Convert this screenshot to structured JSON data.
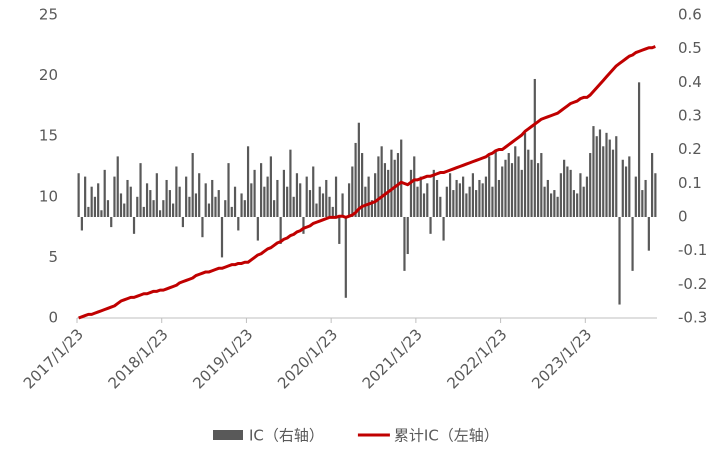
{
  "chart_data": {
    "type": "combo",
    "categories": [
      "2017/1/23",
      null,
      null,
      null,
      null,
      null,
      null,
      null,
      null,
      null,
      null,
      null,
      null,
      null,
      null,
      null,
      null,
      null,
      null,
      null,
      null,
      null,
      null,
      null,
      null,
      null,
      "2018/1/23",
      null,
      null,
      null,
      null,
      null,
      null,
      null,
      null,
      null,
      null,
      null,
      null,
      null,
      null,
      null,
      null,
      null,
      null,
      null,
      null,
      null,
      null,
      null,
      null,
      null,
      "2019/1/23",
      null,
      null,
      null,
      null,
      null,
      null,
      null,
      null,
      null,
      null,
      null,
      null,
      null,
      null,
      null,
      null,
      null,
      null,
      null,
      null,
      null,
      null,
      null,
      null,
      null,
      "2020/1/23",
      null,
      null,
      null,
      null,
      null,
      null,
      null,
      null,
      null,
      null,
      null,
      null,
      null,
      null,
      null,
      null,
      null,
      null,
      null,
      null,
      null,
      null,
      null,
      null,
      null,
      "2021/1/23",
      null,
      null,
      null,
      null,
      null,
      null,
      null,
      null,
      null,
      null,
      null,
      null,
      null,
      null,
      null,
      null,
      null,
      null,
      null,
      null,
      null,
      null,
      null,
      null,
      null,
      "2022/1/23",
      null,
      null,
      null,
      null,
      null,
      null,
      null,
      null,
      null,
      null,
      null,
      null,
      null,
      null,
      null,
      null,
      null,
      null,
      null,
      null,
      null,
      null,
      null,
      null,
      null,
      "2023/1/23",
      null,
      null,
      null,
      null,
      null,
      null,
      null,
      null,
      null,
      null,
      null,
      null,
      null,
      null,
      null,
      null,
      null,
      null,
      null,
      null,
      null
    ],
    "series": [
      {
        "name": "IC（右轴）",
        "type": "bar",
        "axis": "y2",
        "color": "#595959",
        "values": [
          0.13,
          -0.04,
          0.12,
          0.03,
          0.09,
          0.06,
          0.1,
          0.02,
          0.14,
          0.05,
          -0.03,
          0.12,
          0.18,
          0.07,
          0.04,
          0.11,
          0.09,
          -0.05,
          0.06,
          0.16,
          0.03,
          0.1,
          0.08,
          0.05,
          0.13,
          0.02,
          0.05,
          0.11,
          0.08,
          0.04,
          0.15,
          0.09,
          -0.03,
          0.12,
          0.06,
          0.19,
          0.07,
          0.13,
          -0.06,
          0.1,
          0.04,
          0.11,
          0.06,
          0.08,
          -0.12,
          0.05,
          0.16,
          0.03,
          0.09,
          -0.04,
          0.07,
          0.05,
          0.21,
          0.1,
          0.14,
          -0.07,
          0.16,
          0.09,
          0.12,
          0.18,
          0.05,
          0.11,
          -0.08,
          0.14,
          0.09,
          0.2,
          0.06,
          0.13,
          0.1,
          -0.05,
          0.12,
          0.08,
          0.15,
          0.04,
          0.09,
          0.07,
          0.11,
          0.06,
          0.03,
          0.12,
          -0.08,
          0.07,
          -0.24,
          0.1,
          0.15,
          0.22,
          0.28,
          0.19,
          0.09,
          0.12,
          0.05,
          0.13,
          0.18,
          0.21,
          0.16,
          0.14,
          0.2,
          0.17,
          0.19,
          0.23,
          -0.16,
          -0.11,
          0.14,
          0.18,
          0.09,
          0.12,
          0.07,
          0.1,
          -0.05,
          0.14,
          0.11,
          0.06,
          -0.07,
          0.09,
          0.13,
          0.08,
          0.11,
          0.1,
          0.12,
          0.07,
          0.09,
          0.13,
          0.08,
          0.11,
          0.1,
          0.12,
          0.18,
          0.09,
          0.2,
          0.11,
          0.15,
          0.17,
          0.19,
          0.16,
          0.21,
          0.18,
          0.14,
          0.25,
          0.2,
          0.17,
          0.41,
          0.16,
          0.19,
          0.09,
          0.11,
          0.07,
          0.08,
          0.06,
          0.13,
          0.17,
          0.15,
          0.14,
          0.08,
          0.07,
          0.13,
          0.09,
          0.12,
          0.19,
          0.27,
          0.24,
          0.26,
          0.21,
          0.25,
          0.23,
          0.2,
          0.24,
          -0.26,
          0.17,
          0.15,
          0.18,
          -0.16,
          0.12,
          0.4,
          0.08,
          0.11,
          -0.1,
          0.19,
          0.13
        ]
      },
      {
        "name": "累计IC（左轴）",
        "type": "line",
        "axis": "y",
        "color": "#c00000",
        "values": [
          0,
          0.1,
          0.2,
          0.3,
          0.3,
          0.4,
          0.5,
          0.6,
          0.7,
          0.8,
          0.9,
          1.0,
          1.2,
          1.4,
          1.5,
          1.6,
          1.7,
          1.7,
          1.8,
          1.9,
          2.0,
          2.0,
          2.1,
          2.2,
          2.2,
          2.3,
          2.3,
          2.4,
          2.5,
          2.6,
          2.7,
          2.9,
          3.0,
          3.1,
          3.2,
          3.3,
          3.5,
          3.6,
          3.7,
          3.8,
          3.8,
          3.9,
          4.0,
          4.1,
          4.1,
          4.2,
          4.3,
          4.4,
          4.4,
          4.5,
          4.5,
          4.6,
          4.6,
          4.8,
          5.0,
          5.2,
          5.3,
          5.5,
          5.7,
          5.8,
          6.0,
          6.2,
          6.3,
          6.5,
          6.6,
          6.8,
          6.9,
          7.1,
          7.2,
          7.4,
          7.5,
          7.6,
          7.8,
          7.9,
          8.0,
          8.1,
          8.2,
          8.3,
          8.3,
          8.3,
          8.4,
          8.4,
          8.3,
          8.4,
          8.5,
          8.7,
          9.0,
          9.2,
          9.3,
          9.4,
          9.5,
          9.6,
          9.8,
          10.0,
          10.2,
          10.4,
          10.6,
          10.8,
          11.0,
          11.2,
          11.1,
          11.0,
          11.2,
          11.4,
          11.4,
          11.5,
          11.6,
          11.7,
          11.7,
          11.8,
          11.9,
          12.0,
          12.0,
          12.1,
          12.2,
          12.3,
          12.4,
          12.5,
          12.6,
          12.7,
          12.8,
          12.9,
          13.0,
          13.1,
          13.2,
          13.3,
          13.5,
          13.6,
          13.8,
          13.9,
          13.9,
          14.1,
          14.3,
          14.5,
          14.7,
          14.9,
          15.1,
          15.4,
          15.6,
          15.8,
          16.0,
          16.2,
          16.4,
          16.5,
          16.6,
          16.7,
          16.8,
          16.9,
          17.1,
          17.3,
          17.5,
          17.7,
          17.8,
          17.9,
          18.1,
          18.2,
          18.2,
          18.4,
          18.7,
          19.0,
          19.3,
          19.6,
          19.9,
          20.2,
          20.5,
          20.8,
          21.0,
          21.2,
          21.4,
          21.6,
          21.7,
          21.9,
          22.0,
          22.1,
          22.2,
          22.3,
          22.3,
          22.4
        ]
      }
    ],
    "ylim": [
      0,
      25
    ],
    "yticks": [
      0,
      5,
      10,
      15,
      20,
      25
    ],
    "y2lim": [
      -0.3,
      0.6
    ],
    "y2ticks": [
      -0.3,
      -0.2,
      -0.1,
      0,
      0.1,
      0.2,
      0.3,
      0.4,
      0.5,
      0.6
    ],
    "grid": false,
    "legend": "bottom"
  }
}
